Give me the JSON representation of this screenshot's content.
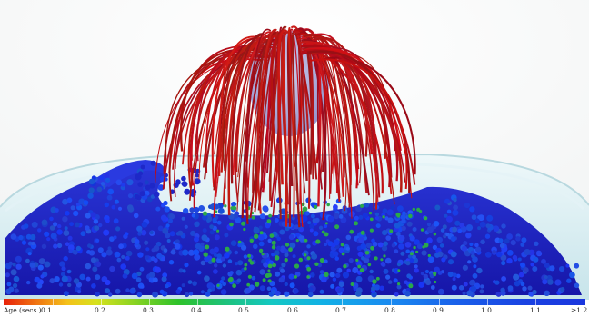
{
  "legend": {
    "title": "Age (secs.)",
    "ticks": [
      "0.1",
      "0.2",
      "0.3",
      "0.4",
      "0.5",
      "0.6",
      "0.7",
      "0.8",
      "0.9",
      "1.0",
      "1.1",
      "≥1.2"
    ]
  },
  "colors": {
    "hair": "#b8151b",
    "young_particles": "#2aa84a",
    "old_particles": "#1a1ec8",
    "basin": "#d7eef2",
    "colorbar_low": "#e8220a",
    "colorbar_high": "#1a36de"
  }
}
